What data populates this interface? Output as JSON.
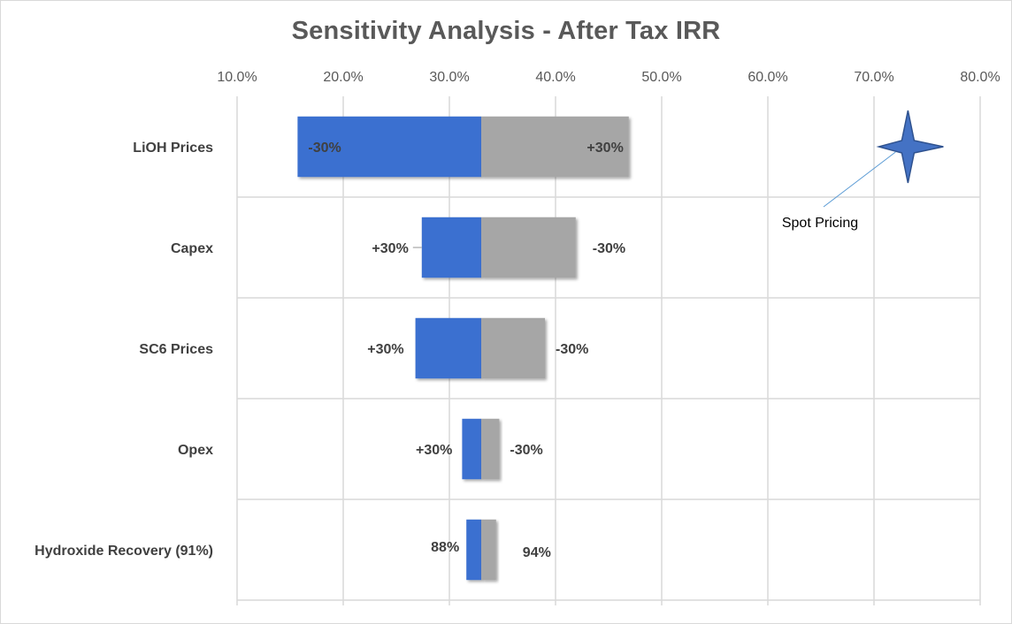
{
  "chart_data": {
    "type": "bar",
    "orientation": "horizontal",
    "title": "Sensitivity Analysis - After Tax IRR",
    "x_tick_labels": [
      "10.0%",
      "20.0%",
      "30.0%",
      "40.0%",
      "50.0%",
      "60.0%",
      "70.0%",
      "80.0%"
    ],
    "xlim": [
      10,
      80
    ],
    "x_axis_position": "top",
    "grid": true,
    "base_value": 33.0,
    "categories": [
      "LiOH Prices",
      "Capex",
      "SC6 Prices",
      "Opex",
      "Hydroxide Recovery (91%)"
    ],
    "series": [
      {
        "color": "#3a6fd0",
        "values": [
          15.7,
          27.4,
          26.8,
          31.2,
          31.6
        ],
        "labels": [
          "-30%",
          "+30%",
          "+30%",
          "+30%",
          "88%"
        ]
      },
      {
        "color": "#a6a6a6",
        "values": [
          46.9,
          41.9,
          39.0,
          34.7,
          34.4
        ],
        "labels": [
          "+30%",
          "-30%",
          "-30%",
          "-30%",
          "94%"
        ]
      }
    ],
    "annotation": {
      "text": "Spot Pricing",
      "marker": "four-point-star",
      "marker_value": 73.2,
      "marker_color": "#4472c4"
    }
  }
}
